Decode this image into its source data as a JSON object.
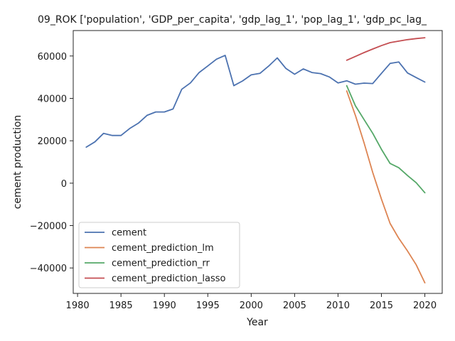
{
  "chart_data": {
    "type": "line",
    "title": "09_ROK ['population', 'GDP_per_capita', 'gdp_lag_1', 'pop_lag_1', 'gdp_pc_lag_",
    "xlabel": "Year",
    "ylabel": "cement production",
    "xlim": [
      1979.5,
      2022
    ],
    "ylim": [
      -52000,
      72000
    ],
    "xticks": [
      1980,
      1985,
      1990,
      1995,
      2000,
      2005,
      2010,
      2015,
      2020
    ],
    "yticks": [
      -40000,
      -20000,
      0,
      20000,
      40000,
      60000
    ],
    "legend_position": "lower-left",
    "grid": false,
    "series": [
      {
        "name": "cement",
        "color": "#4c72b0",
        "x": [
          1981,
          1982,
          1983,
          1984,
          1985,
          1986,
          1987,
          1988,
          1989,
          1990,
          1991,
          1992,
          1993,
          1994,
          1995,
          1996,
          1997,
          1998,
          1999,
          2000,
          2001,
          2002,
          2003,
          2004,
          2005,
          2006,
          2007,
          2008,
          2009,
          2010,
          2011,
          2012,
          2013,
          2014,
          2015,
          2016,
          2017,
          2018,
          2019,
          2020
        ],
        "y": [
          17000,
          19500,
          23500,
          22500,
          22500,
          25800,
          28300,
          32000,
          33600,
          33600,
          35000,
          44300,
          47300,
          52200,
          55300,
          58500,
          60300,
          46000,
          48200,
          51100,
          51800,
          55200,
          59100,
          54100,
          51400,
          53900,
          52200,
          51700,
          50100,
          47300,
          48300,
          46700,
          47200,
          47000,
          51800,
          56500,
          57200,
          52000,
          49800,
          47700
        ]
      },
      {
        "name": "cement_prediction_lm",
        "color": "#dd8452",
        "x": [
          2011,
          2012,
          2013,
          2014,
          2015,
          2016,
          2017,
          2018,
          2019,
          2020
        ],
        "y": [
          43500,
          32000,
          19000,
          5000,
          -7500,
          -19000,
          -26000,
          -32000,
          -38500,
          -47000
        ]
      },
      {
        "name": "cement_prediction_rr",
        "color": "#55a868",
        "x": [
          2011,
          2012,
          2013,
          2014,
          2015,
          2016,
          2017,
          2018,
          2019,
          2020
        ],
        "y": [
          46000,
          36500,
          30000,
          23500,
          16000,
          9300,
          7300,
          3600,
          200,
          -4500
        ]
      },
      {
        "name": "cement_prediction_lasso",
        "color": "#c44e52",
        "x": [
          2011,
          2012,
          2013,
          2014,
          2015,
          2016,
          2017,
          2018,
          2019,
          2020
        ],
        "y": [
          58000,
          59800,
          61600,
          63300,
          64900,
          66300,
          67000,
          67700,
          68200,
          68600
        ]
      }
    ]
  }
}
